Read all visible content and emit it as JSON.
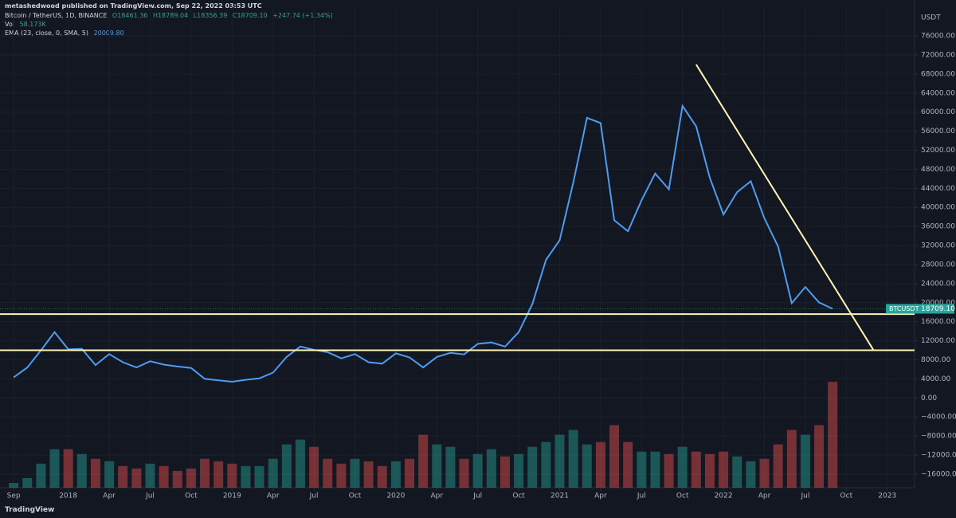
{
  "header": {
    "publisher": "metashedwood published on TradingView.com, Sep 22, 2022 03:53 UTC"
  },
  "legend": {
    "symbol": "Bitcoin / TetherUS, 1D, BINANCE",
    "open": "O18461.36",
    "high": "H18789.04",
    "low": "L18356.39",
    "close": "C18709.10",
    "change": "+247.74 (+1.34%)",
    "vol_label": "Vol",
    "vol": "58.173K",
    "ema_label": "EMA (23, close, 0, SMA, 5)",
    "ema": "20009.80"
  },
  "footer": {
    "brand": "TradingView"
  },
  "chart_data": {
    "type": "line",
    "y_label": "USDT",
    "x": [
      "2017-09",
      "2017-10",
      "2017-11",
      "2017-12",
      "2018-01",
      "2018-02",
      "2018-03",
      "2018-04",
      "2018-05",
      "2018-06",
      "2018-07",
      "2018-08",
      "2018-09",
      "2018-10",
      "2018-11",
      "2018-12",
      "2019-01",
      "2019-02",
      "2019-03",
      "2019-04",
      "2019-05",
      "2019-06",
      "2019-07",
      "2019-08",
      "2019-09",
      "2019-10",
      "2019-11",
      "2019-12",
      "2020-01",
      "2020-02",
      "2020-03",
      "2020-04",
      "2020-05",
      "2020-06",
      "2020-07",
      "2020-08",
      "2020-09",
      "2020-10",
      "2020-11",
      "2020-12",
      "2021-01",
      "2021-02",
      "2021-03",
      "2021-04",
      "2021-05",
      "2021-06",
      "2021-07",
      "2021-08",
      "2021-09",
      "2021-10",
      "2021-11",
      "2021-12",
      "2022-01",
      "2022-02",
      "2022-03",
      "2022-04",
      "2022-05",
      "2022-06",
      "2022-07",
      "2022-08",
      "2022-09"
    ],
    "series": [
      {
        "color": "#4d9cf0",
        "values": [
          4300,
          6400,
          10000,
          13800,
          10200,
          10300,
          6900,
          9200,
          7500,
          6400,
          7700,
          7000,
          6600,
          6300,
          4000,
          3700,
          3400,
          3800,
          4100,
          5300,
          8600,
          10800,
          10100,
          9600,
          8300,
          9200,
          7500,
          7200,
          9350,
          8500,
          6400,
          8600,
          9450,
          9140,
          11350,
          11650,
          10780,
          13800,
          19700,
          29000,
          33100,
          45200,
          58800,
          57700,
          37300,
          35000,
          41500,
          47100,
          43800,
          61300,
          57000,
          46200,
          38500,
          43200,
          45500,
          37700,
          31800,
          19900,
          23300,
          20050,
          18709.1
        ]
      },
      {
        "color": "#26a69a",
        "down_color": "#ef5350",
        "type": "bar",
        "axis": "y2",
        "values": [
          10,
          20,
          50,
          80,
          80,
          70,
          60,
          55,
          45,
          40,
          50,
          45,
          35,
          40,
          60,
          55,
          50,
          45,
          45,
          60,
          90,
          100,
          85,
          60,
          50,
          60,
          55,
          45,
          55,
          60,
          110,
          90,
          85,
          60,
          70,
          80,
          65,
          70,
          85,
          95,
          110,
          120,
          90,
          95,
          130,
          95,
          75,
          75,
          70,
          85,
          75,
          70,
          75,
          65,
          55,
          60,
          90,
          120,
          110,
          130,
          220
        ]
      }
    ],
    "xlim": [
      "2017-08",
      "2023-03"
    ],
    "xticks": [
      {
        "value": "2017-09",
        "label": "Sep"
      },
      {
        "value": "2018-01",
        "label": "2018"
      },
      {
        "value": "2018-04",
        "label": "Apr"
      },
      {
        "value": "2018-07",
        "label": "Jul"
      },
      {
        "value": "2018-10",
        "label": "Oct"
      },
      {
        "value": "2019-01",
        "label": "2019"
      },
      {
        "value": "2019-04",
        "label": "Apr"
      },
      {
        "value": "2019-07",
        "label": "Jul"
      },
      {
        "value": "2019-10",
        "label": "Oct"
      },
      {
        "value": "2020-01",
        "label": "2020"
      },
      {
        "value": "2020-04",
        "label": "Apr"
      },
      {
        "value": "2020-07",
        "label": "Jul"
      },
      {
        "value": "2020-10",
        "label": "Oct"
      },
      {
        "value": "2021-01",
        "label": "2021"
      },
      {
        "value": "2021-04",
        "label": "Apr"
      },
      {
        "value": "2021-07",
        "label": "Jul"
      },
      {
        "value": "2021-10",
        "label": "Oct"
      },
      {
        "value": "2022-01",
        "label": "2022"
      },
      {
        "value": "2022-04",
        "label": "Apr"
      },
      {
        "value": "2022-07",
        "label": "Jul"
      },
      {
        "value": "2022-10",
        "label": "Oct"
      },
      {
        "value": "2023-01",
        "label": "2023"
      }
    ],
    "ylim": [
      -18850,
      82200
    ],
    "yticks": [
      {
        "value": 76000,
        "label": "76000.00"
      },
      {
        "value": 72000,
        "label": "72000.00"
      },
      {
        "value": 68000,
        "label": "68000.00"
      },
      {
        "value": 64000,
        "label": "64000.00"
      },
      {
        "value": 60000,
        "label": "60000.00"
      },
      {
        "value": 56000,
        "label": "56000.00"
      },
      {
        "value": 52000,
        "label": "52000.00"
      },
      {
        "value": 48000,
        "label": "48000.00"
      },
      {
        "value": 44000,
        "label": "44000.00"
      },
      {
        "value": 40000,
        "label": "40000.00"
      },
      {
        "value": 36000,
        "label": "36000.00"
      },
      {
        "value": 32000,
        "label": "32000.00"
      },
      {
        "value": 28000,
        "label": "28000.00"
      },
      {
        "value": 24000,
        "label": "24000.00"
      },
      {
        "value": 20000,
        "label": "20000.00"
      },
      {
        "value": 16000,
        "label": "16000.00"
      },
      {
        "value": 12000,
        "label": "12000.00"
      },
      {
        "value": 8000,
        "label": "8000.00"
      },
      {
        "value": 4000,
        "label": "4000.00"
      },
      {
        "value": 0,
        "label": "0.00"
      },
      {
        "value": -4000,
        "label": "−4000.00"
      },
      {
        "value": -8000,
        "label": "−8000.00"
      },
      {
        "value": -12000,
        "label": "−12000.00"
      },
      {
        "value": -16000,
        "label": "−16000.00"
      }
    ],
    "y2lim": [
      0,
      1000
    ],
    "grid": true,
    "levels": [
      17600,
      10000
    ],
    "trendline": {
      "x": [
        "2021-11",
        "2022-12"
      ],
      "values": [
        70000,
        10000
      ]
    },
    "last": {
      "name": "BTCUSDT",
      "value": 18709.1,
      "label": "18709.10"
    }
  }
}
